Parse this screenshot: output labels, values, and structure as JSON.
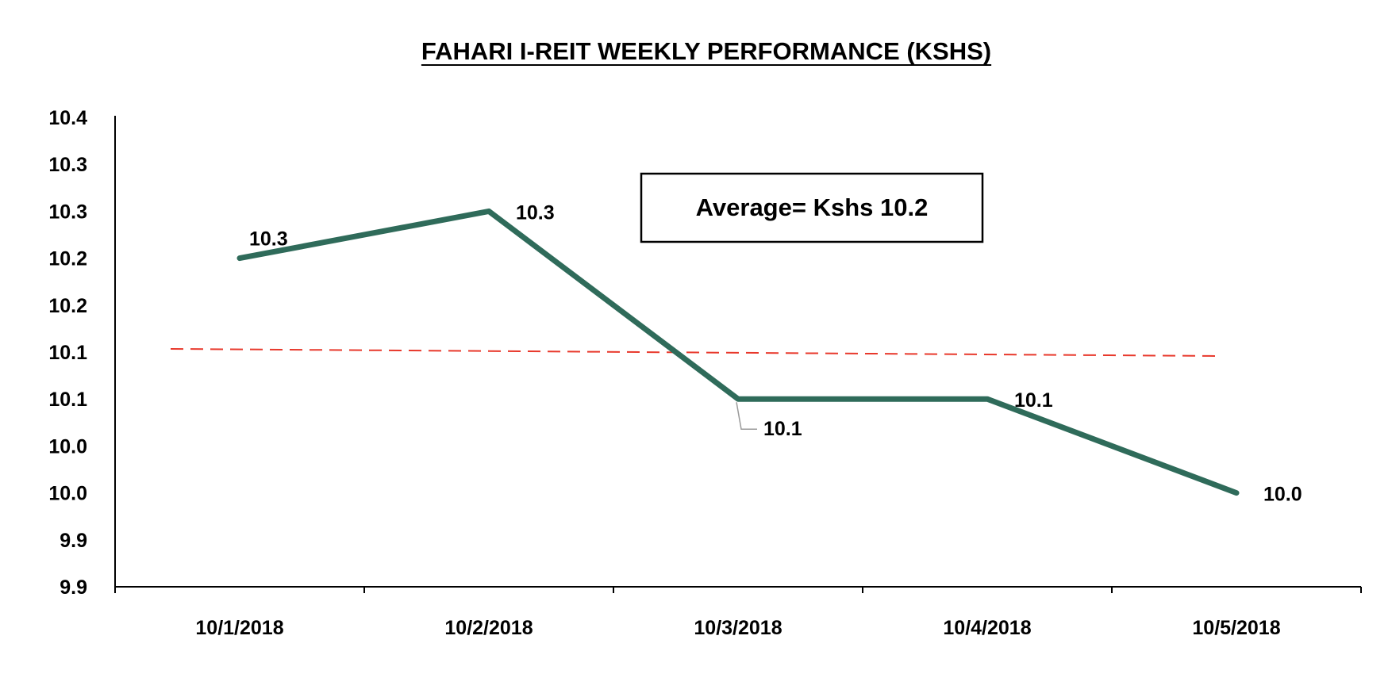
{
  "chart_data": {
    "type": "line",
    "title": "FAHARI I-REIT WEEKLY PERFORMANCE (KSHS)",
    "xlabel": "",
    "ylabel": "",
    "categories": [
      "10/1/2018",
      "10/2/2018",
      "10/3/2018",
      "10/4/2018",
      "10/5/2018"
    ],
    "series": [
      {
        "values": [
          10.25,
          10.3,
          10.1,
          10.1,
          10.0
        ],
        "data_labels": [
          "10.3",
          "10.3",
          "10.1",
          "10.1",
          "10.0"
        ],
        "color": "#2f6b5a"
      }
    ],
    "average_line": {
      "value": 10.15,
      "color": "#e8382b",
      "style": "dashed"
    },
    "annotation": {
      "text": "Average= Kshs 10.2"
    },
    "y_ticks": [
      9.9,
      9.95,
      10.0,
      10.05,
      10.1,
      10.15,
      10.2,
      10.25,
      10.3,
      10.35,
      10.4
    ],
    "y_tick_labels": [
      "9.9",
      "9.9",
      "10.0",
      "10.0",
      "10.1",
      "10.1",
      "10.2",
      "10.2",
      "10.3",
      "10.3",
      "10.4"
    ],
    "ylim": [
      9.9,
      10.4
    ],
    "grid": false,
    "legend": "none"
  }
}
